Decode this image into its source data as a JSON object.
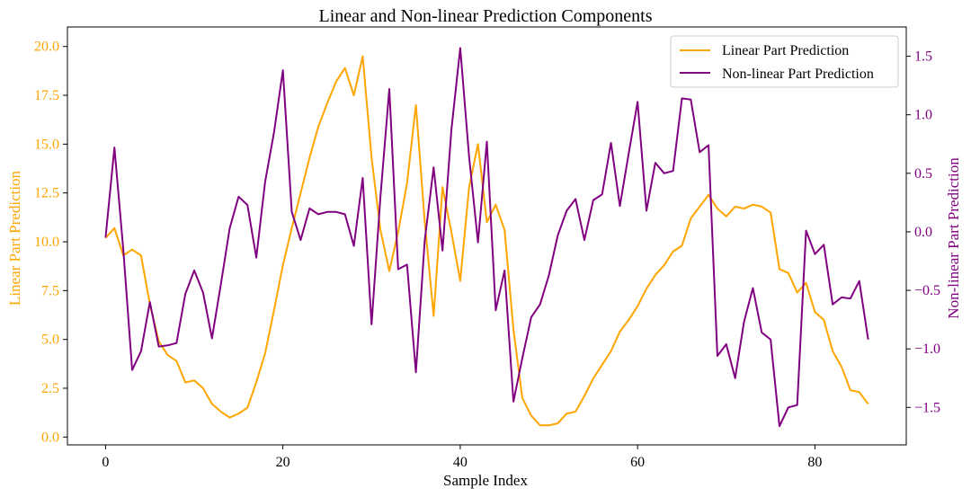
{
  "chart_data": {
    "type": "line",
    "title": "Linear and Non-linear Prediction Components",
    "xlabel": "Sample Index",
    "ylabel_left": "Linear Part Prediction",
    "ylabel_right": "Non-linear Part Prediction",
    "xlim": [
      -4.3,
      90.3
    ],
    "ylim_left": [
      -0.4,
      21.0
    ],
    "ylim_right": [
      -1.82,
      1.75
    ],
    "x_ticks": [
      0,
      20,
      40,
      60,
      80
    ],
    "y_ticks_left": [
      "0.0",
      "2.5",
      "5.0",
      "7.5",
      "10.0",
      "12.5",
      "15.0",
      "17.5",
      "20.0"
    ],
    "y_ticks_right": [
      "−1.5",
      "−1.0",
      "−0.5",
      "0.0",
      "0.5",
      "1.0",
      "1.5"
    ],
    "legend_position": "top-right",
    "colors": {
      "linear": "#FFA500",
      "nonlinear": "#800080"
    },
    "series": [
      {
        "name": "Linear Part Prediction",
        "axis": "left",
        "color": "#FFA500",
        "x_start": 0,
        "values": [
          10.2,
          10.7,
          9.3,
          9.6,
          9.3,
          6.8,
          4.9,
          4.2,
          3.9,
          2.8,
          2.9,
          2.5,
          1.7,
          1.3,
          1.0,
          1.2,
          1.5,
          2.8,
          4.3,
          6.5,
          8.8,
          10.7,
          12.5,
          14.3,
          15.9,
          17.1,
          18.2,
          18.9,
          17.5,
          19.5,
          14.3,
          10.6,
          8.5,
          10.5,
          13.0,
          17.0,
          11.0,
          6.2,
          12.8,
          10.5,
          8.0,
          12.8,
          15.0,
          11.0,
          11.9,
          10.6,
          5.5,
          2.0,
          1.1,
          0.6,
          0.6,
          0.7,
          1.2,
          1.3,
          2.1,
          3.0,
          3.7,
          4.4,
          5.4,
          6.0,
          6.7,
          7.6,
          8.3,
          8.8,
          9.5,
          9.8,
          11.2,
          11.8,
          12.4,
          11.7,
          11.3,
          11.8,
          11.7,
          11.9,
          11.8,
          11.5,
          8.6,
          8.4,
          7.4,
          7.9,
          6.4,
          6.0,
          4.4,
          3.6,
          2.4,
          2.3,
          1.7
        ]
      },
      {
        "name": "Non-linear Part Prediction",
        "axis": "right",
        "color": "#800080",
        "x_start": 0,
        "values": [
          -0.05,
          0.72,
          -0.15,
          -1.18,
          -1.02,
          -0.6,
          -0.98,
          -0.97,
          -0.95,
          -0.53,
          -0.33,
          -0.52,
          -0.91,
          -0.45,
          0.03,
          0.3,
          0.23,
          -0.22,
          0.43,
          0.85,
          1.38,
          0.17,
          -0.07,
          0.2,
          0.15,
          0.17,
          0.17,
          0.15,
          -0.12,
          0.46,
          -0.79,
          0.3,
          1.22,
          -0.32,
          -0.28,
          -1.2,
          -0.07,
          0.55,
          -0.16,
          0.87,
          1.57,
          0.64,
          -0.09,
          0.77,
          -0.67,
          -0.33,
          -1.45,
          -1.08,
          -0.73,
          -0.62,
          -0.37,
          -0.03,
          0.18,
          0.28,
          -0.07,
          0.27,
          0.32,
          0.76,
          0.22,
          0.67,
          1.11,
          0.18,
          0.59,
          0.5,
          0.52,
          1.14,
          1.13,
          0.68,
          0.74,
          -1.06,
          -0.96,
          -1.25,
          -0.77,
          -0.48,
          -0.86,
          -0.92,
          -1.66,
          -1.5,
          -1.48,
          0.01,
          -0.19,
          -0.11,
          -0.62,
          -0.56,
          -0.57,
          -0.42,
          -0.92
        ]
      }
    ]
  }
}
